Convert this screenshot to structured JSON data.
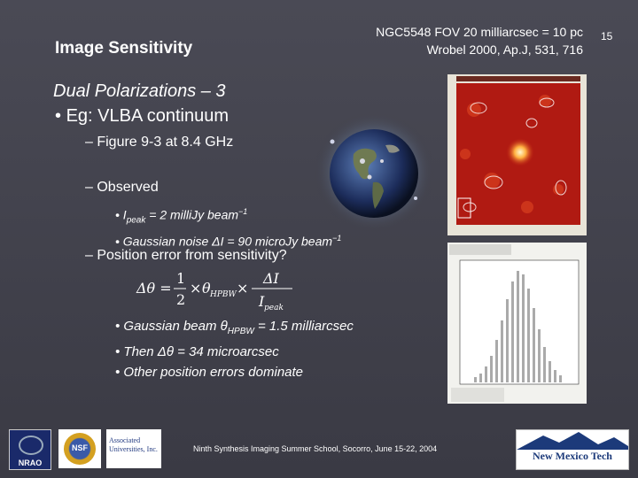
{
  "slide": {
    "title": "Image Sensitivity",
    "reference_line1": "NGC5548 FOV 20 milliarcsec = 10 pc",
    "reference_line2": "Wrobel 2000, Ap.J, 531, 716",
    "page_number": "15",
    "subtitle": "Dual Polarizations – 3",
    "bullets": {
      "main": "Eg:  VLBA continuum",
      "figure": "– Figure 9-3 at 8.4 GHz",
      "observed": "– Observed",
      "ipeak": "• Ipeak = 2 milliJy beam⁻¹",
      "noise": "• Gaussian noise ΔI = 90 microJy beam⁻¹",
      "position": "– Position error from sensitivity?",
      "beam": "• Gaussian beam θHPBW = 1.5 milliarcsec",
      "then": "• Then Δθ = 34 microarcsec",
      "other": "• Other position errors dominate"
    },
    "footer": "Ninth Synthesis Imaging Summer School, Socorro, June 15-22, 2004",
    "logos": {
      "nrao": "NRAO",
      "nsf": "NSF",
      "aui": "Associated Universities, Inc.",
      "nmt": "New Mexico Tech"
    }
  }
}
